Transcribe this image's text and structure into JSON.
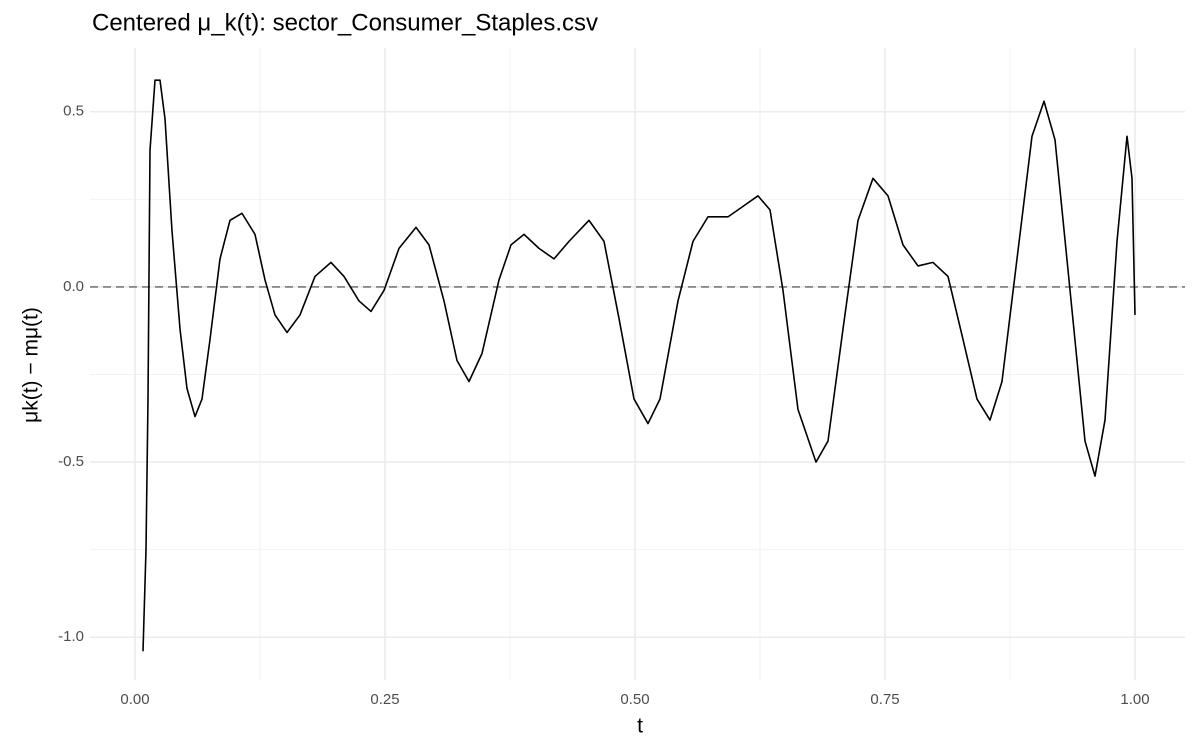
{
  "chart_data": {
    "type": "line",
    "title": "Centered μ_k(t): sector_Consumer_Staples.csv",
    "xlabel": "t",
    "ylabel": "μk(t) − mμ(t)",
    "x": [
      0.008,
      0.011,
      0.013,
      0.015,
      0.02,
      0.025,
      0.03,
      0.037,
      0.045,
      0.052,
      0.06,
      0.067,
      0.075,
      0.085,
      0.095,
      0.107,
      0.12,
      0.13,
      0.14,
      0.152,
      0.165,
      0.18,
      0.196,
      0.209,
      0.224,
      0.236,
      0.249,
      0.264,
      0.281,
      0.294,
      0.309,
      0.322,
      0.334,
      0.347,
      0.364,
      0.376,
      0.389,
      0.404,
      0.419,
      0.434,
      0.454,
      0.469,
      0.484,
      0.499,
      0.513,
      0.525,
      0.543,
      0.558,
      0.573,
      0.593,
      0.608,
      0.623,
      0.635,
      0.648,
      0.663,
      0.681,
      0.693,
      0.708,
      0.723,
      0.738,
      0.753,
      0.768,
      0.783,
      0.798,
      0.813,
      0.828,
      0.842,
      0.855,
      0.867,
      0.882,
      0.897,
      0.909,
      0.92,
      0.934,
      0.95,
      0.96,
      0.97,
      0.982,
      0.992,
      0.997,
      1.0
    ],
    "values": [
      -1.04,
      -0.75,
      -0.32,
      0.39,
      0.59,
      0.59,
      0.48,
      0.16,
      -0.12,
      -0.29,
      -0.37,
      -0.32,
      -0.15,
      0.08,
      0.19,
      0.21,
      0.15,
      0.02,
      -0.08,
      -0.13,
      -0.08,
      0.03,
      0.07,
      0.03,
      -0.04,
      -0.07,
      -0.01,
      0.11,
      0.17,
      0.12,
      -0.04,
      -0.21,
      -0.27,
      -0.19,
      0.02,
      0.12,
      0.15,
      0.11,
      0.08,
      0.13,
      0.19,
      0.13,
      -0.09,
      -0.32,
      -0.39,
      -0.32,
      -0.04,
      0.13,
      0.2,
      0.2,
      0.23,
      0.26,
      0.22,
      -0.01,
      -0.35,
      -0.5,
      -0.44,
      -0.12,
      0.19,
      0.31,
      0.26,
      0.12,
      0.06,
      0.07,
      0.03,
      -0.15,
      -0.32,
      -0.38,
      -0.27,
      0.08,
      0.43,
      0.53,
      0.42,
      0.02,
      -0.44,
      -0.54,
      -0.38,
      0.13,
      0.43,
      0.31,
      -0.08
    ],
    "color": "#000000",
    "xlim": [
      -0.045,
      1.05
    ],
    "ylim": [
      -1.122,
      0.682
    ],
    "xticks": [
      {
        "value": 0,
        "label": "0.00"
      },
      {
        "value": 0.25,
        "label": "0.25"
      },
      {
        "value": 0.5,
        "label": "0.50"
      },
      {
        "value": 0.75,
        "label": "0.75"
      },
      {
        "value": 1,
        "label": "1.00"
      }
    ],
    "yticks": [
      {
        "value": -1,
        "label": "-1.0"
      },
      -0.5,
      {
        "value": 0,
        "label": "0.0"
      },
      0.5
    ],
    "minor_xticks": [
      0.125,
      0.375,
      0.625,
      0.875
    ],
    "minor_yticks": [
      -0.75,
      -0.25,
      0.25
    ],
    "grid": true,
    "reference_line": {
      "value": 0,
      "style": "dashed",
      "color": "#666666"
    }
  }
}
